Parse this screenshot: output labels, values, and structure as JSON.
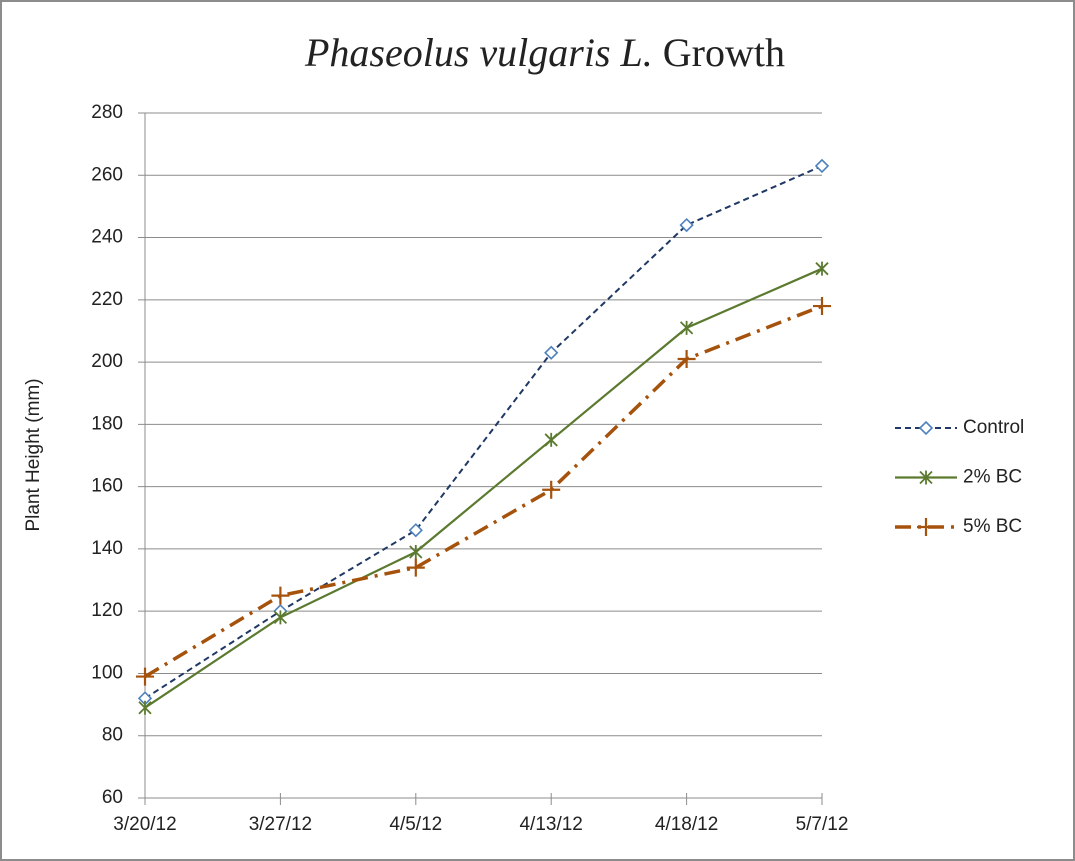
{
  "chart_data": {
    "type": "line",
    "title": [
      "Phaseolus vulgaris L.",
      "Growth"
    ],
    "ylabel": "Plant Height (mm)",
    "categories": [
      "3/20/12",
      "3/27/12",
      "4/5/12",
      "4/13/12",
      "4/18/12",
      "5/7/12"
    ],
    "series": [
      {
        "name": "Control",
        "color": "#1f3864",
        "marker_color": "#4f81bd",
        "marker": "diamond",
        "dash": "dashed",
        "values": [
          92,
          120,
          146,
          203,
          244,
          263
        ]
      },
      {
        "name": "2% BC",
        "color": "#5b7a2f",
        "marker_color": "#5b7a2f",
        "marker": "star",
        "dash": "solid",
        "values": [
          89,
          118,
          139,
          175,
          211,
          230
        ]
      },
      {
        "name": "5% BC",
        "color": "#a5520c",
        "marker_color": "#a5520c",
        "marker": "plus",
        "dash": "dashdot",
        "values": [
          99,
          125,
          134,
          159,
          201,
          218
        ]
      }
    ],
    "ylim": [
      60,
      280
    ],
    "yticks": [
      60,
      80,
      100,
      120,
      140,
      160,
      180,
      200,
      220,
      240,
      260,
      280
    ],
    "grid": true,
    "legend": "right"
  }
}
